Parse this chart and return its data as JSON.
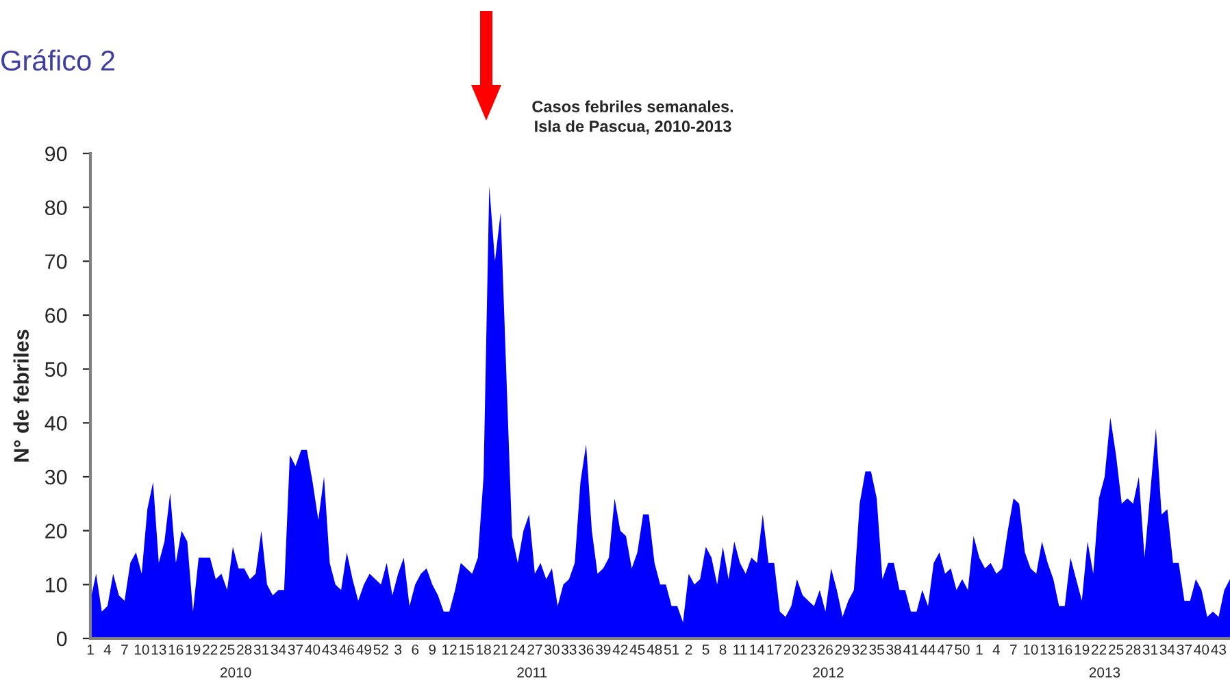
{
  "chart_data": {
    "type": "area",
    "title": "Gráfico 2",
    "subtitle": "Casos febriles semanales.\nIsla de Pascua, 2010-2013",
    "ylabel": "N° de febriles",
    "annotations": [
      "2010",
      "2011",
      "2012",
      "2013"
    ],
    "categories": [
      "1",
      null,
      null,
      "4",
      null,
      null,
      "7",
      null,
      null,
      "10",
      null,
      null,
      "13",
      null,
      null,
      "16",
      null,
      null,
      "19",
      null,
      null,
      "22",
      null,
      null,
      "25",
      null,
      null,
      "28",
      null,
      null,
      "31",
      null,
      null,
      "34",
      null,
      null,
      "37",
      null,
      null,
      "40",
      null,
      null,
      "43",
      null,
      null,
      "46",
      null,
      null,
      "49",
      null,
      null,
      "52",
      null,
      null,
      "3",
      null,
      null,
      "6",
      null,
      null,
      "9",
      null,
      null,
      "12",
      null,
      null,
      "15",
      null,
      null,
      "18",
      null,
      null,
      "21",
      null,
      null,
      "24",
      null,
      null,
      "27",
      null,
      null,
      "30",
      null,
      null,
      "33",
      null,
      null,
      "36",
      null,
      null,
      "39",
      null,
      null,
      "42",
      null,
      null,
      "45",
      null,
      null,
      "48",
      null,
      null,
      "51",
      null,
      null,
      "2",
      null,
      null,
      "5",
      null,
      null,
      "8",
      null,
      null,
      "11",
      null,
      null,
      "14",
      null,
      null,
      "17",
      null,
      null,
      "20",
      null,
      null,
      "23",
      null,
      null,
      "26",
      null,
      null,
      "29",
      null,
      null,
      "32",
      null,
      null,
      "35",
      null,
      null,
      "38",
      null,
      null,
      "41",
      null,
      null,
      "44",
      null,
      null,
      "47",
      null,
      null,
      "50",
      null,
      null,
      "1",
      null,
      null,
      "4",
      null,
      null,
      "7",
      null,
      null,
      "10",
      null,
      null,
      "13",
      null,
      null,
      "16",
      null,
      null,
      "19",
      null,
      null,
      "22",
      null,
      null,
      "25",
      null,
      null,
      "28",
      null,
      null,
      "31",
      null,
      null,
      "34",
      null,
      null,
      "37",
      null,
      null,
      "40",
      null,
      null,
      "43",
      null,
      null
    ],
    "series": [
      {
        "color": "#0000ff",
        "values": [
          7,
          12,
          5,
          6,
          12,
          8,
          7,
          14,
          16,
          12,
          24,
          29,
          14,
          18,
          27,
          14,
          20,
          18,
          5,
          15,
          15,
          15,
          11,
          12,
          9,
          17,
          13,
          13,
          11,
          12,
          20,
          10,
          8,
          9,
          9,
          34,
          32,
          35,
          35,
          29,
          22,
          30,
          14,
          10,
          9,
          16,
          11,
          7,
          10,
          12,
          11,
          10,
          14,
          8,
          12,
          15,
          6,
          10,
          12,
          13,
          10,
          8,
          5,
          5,
          9,
          14,
          13,
          12,
          15,
          30,
          84,
          70,
          79,
          49,
          19,
          14,
          20,
          23,
          12,
          14,
          11,
          13,
          6,
          10,
          11,
          14,
          29,
          36,
          20,
          12,
          13,
          15,
          26,
          20,
          19,
          13,
          16,
          23,
          23,
          14,
          10,
          10,
          6,
          6,
          3,
          12,
          10,
          11,
          17,
          15,
          10,
          17,
          11,
          18,
          14,
          12,
          15,
          14,
          23,
          14,
          14,
          5,
          4,
          6,
          11,
          8,
          7,
          6,
          9,
          5,
          13,
          9,
          4,
          7,
          9,
          25,
          31,
          31,
          26,
          11,
          14,
          14,
          9,
          9,
          5,
          5,
          9,
          6,
          14,
          16,
          12,
          13,
          9,
          11,
          9,
          19,
          15,
          13,
          14,
          12,
          13,
          20,
          26,
          25,
          16,
          13,
          12,
          18,
          14,
          11,
          6,
          6,
          15,
          11,
          7,
          18,
          12,
          26,
          30,
          41,
          34,
          25,
          26,
          25,
          30,
          15,
          27,
          39,
          23,
          24,
          14,
          14,
          7,
          7,
          11,
          9,
          4,
          5,
          4,
          9,
          11
        ]
      }
    ],
    "ylim": [
      0,
      90
    ],
    "yticks": [
      0,
      10,
      20,
      30,
      40,
      50,
      60,
      70,
      80,
      90
    ],
    "grid": false,
    "legend": false
  }
}
